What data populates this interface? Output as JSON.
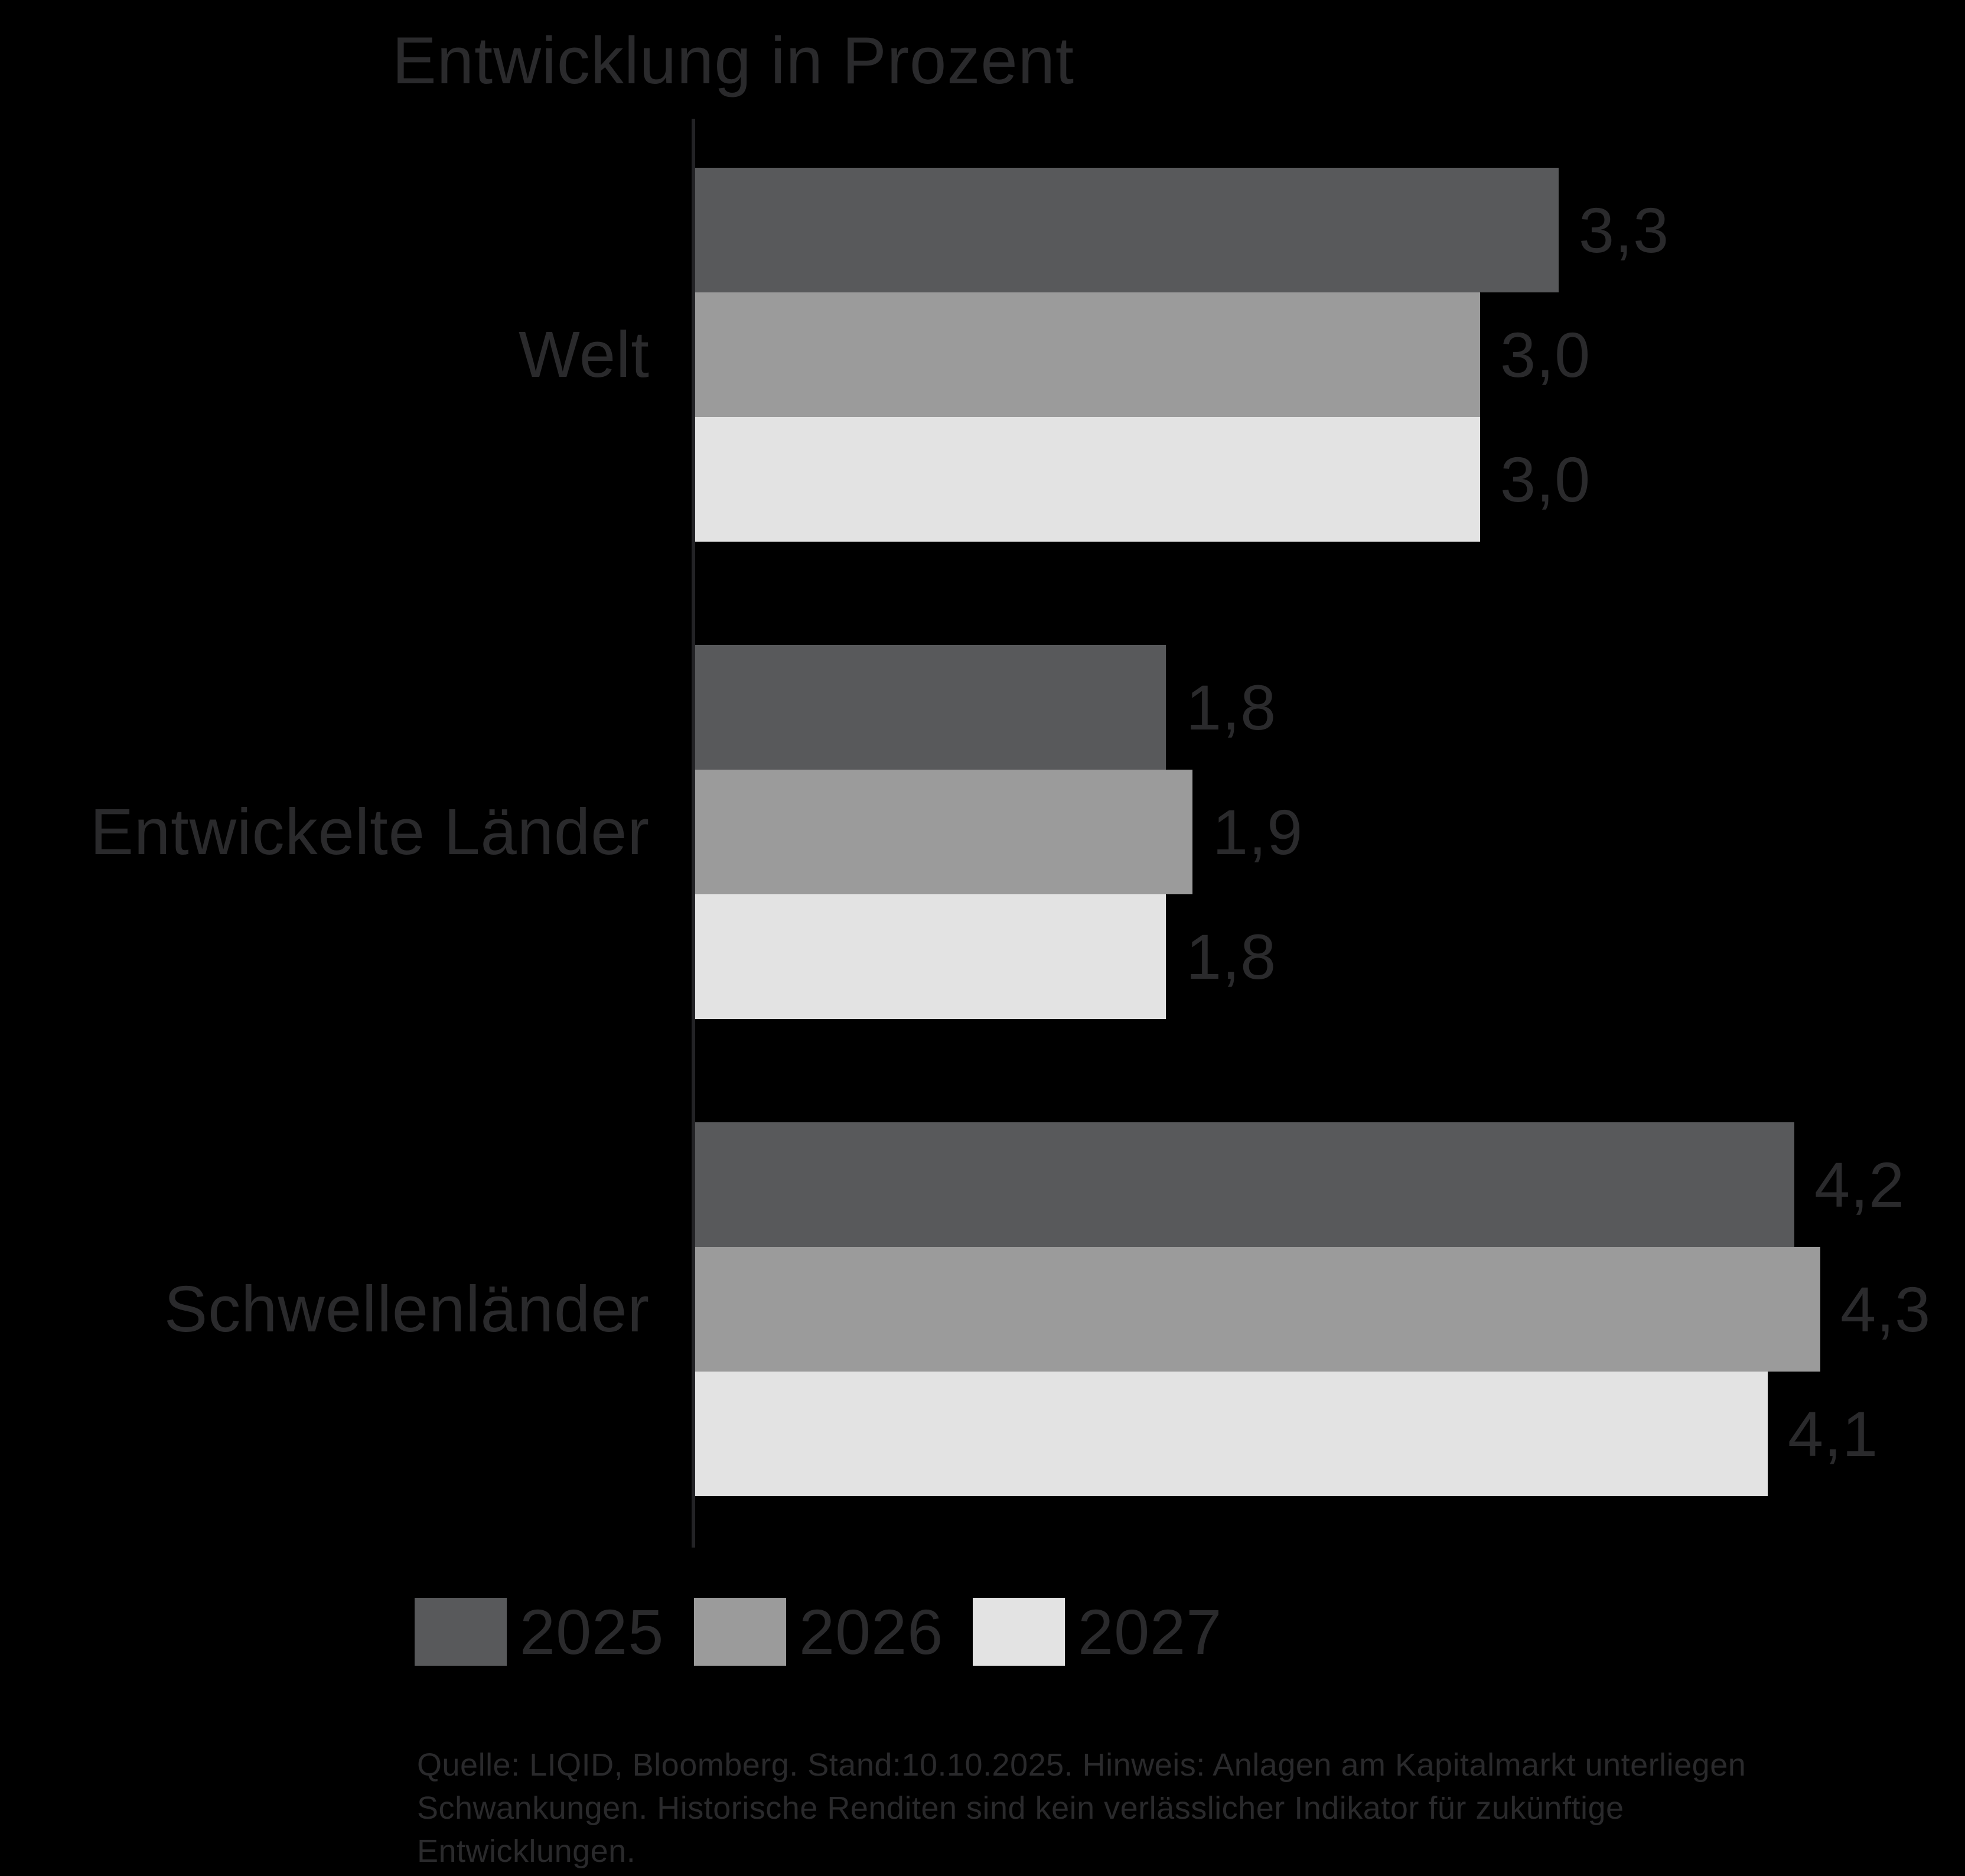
{
  "title": "Entwicklung in Prozent",
  "chart_data": {
    "type": "bar",
    "orientation": "horizontal",
    "title": "Entwicklung in Prozent",
    "categories": [
      "Welt",
      "Entwickelte Länder",
      "Schwellenländer"
    ],
    "series": [
      {
        "name": "2025",
        "values": [
          3.3,
          1.8,
          4.2
        ],
        "display_values": [
          "3,3",
          "1,8",
          "4,2"
        ],
        "color": "#58595b"
      },
      {
        "name": "2026",
        "values": [
          3.0,
          1.9,
          4.3
        ],
        "display_values": [
          "3,0",
          "1,9",
          "4,3"
        ],
        "color": "#9b9b9b"
      },
      {
        "name": "2027",
        "values": [
          3.0,
          1.8,
          4.1
        ],
        "display_values": [
          "3,0",
          "1,8",
          "4,1"
        ],
        "color": "#e3e3e3"
      }
    ],
    "xlim": [
      0,
      4.85
    ],
    "grid": false,
    "legend_position": "bottom",
    "value_label_format": "decimal-comma"
  },
  "legend": {
    "items": [
      {
        "label": "2025",
        "color": "#58595b"
      },
      {
        "label": "2026",
        "color": "#9b9b9b"
      },
      {
        "label": "2027",
        "color": "#e3e3e3"
      }
    ]
  },
  "source_note": {
    "line1": "Quelle: LIQID, Bloomberg. Stand:10.10.2025. Hinweis: Anlagen am Kapitalmarkt unterliegen",
    "line2": "Schwankungen. Historische Renditen sind kein verlässlicher Indikator für zukünftige",
    "line3": "Entwicklungen."
  },
  "colors": {
    "background": "#000000",
    "text": "#2a2a2c",
    "axis_line": "#232326"
  }
}
